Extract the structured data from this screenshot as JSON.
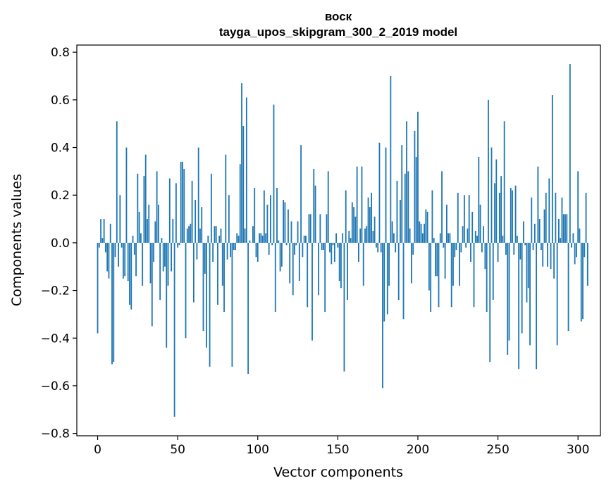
{
  "chart_data": {
    "type": "bar",
    "title_line1": "воск",
    "title_line2": "tayga_upos_skipgram_300_2_2019 model",
    "xlabel": "Vector components",
    "ylabel": "Components values",
    "xlim": [
      -13,
      314
    ],
    "ylim": [
      -0.81,
      0.83
    ],
    "xticks": [
      0,
      50,
      100,
      150,
      200,
      250,
      300
    ],
    "xtick_labels": [
      "0",
      "50",
      "100",
      "150",
      "200",
      "250",
      "300"
    ],
    "yticks": [
      -0.8,
      -0.6,
      -0.4,
      -0.2,
      0.0,
      0.2,
      0.4,
      0.6,
      0.8
    ],
    "ytick_labels": [
      "−0.8",
      "−0.6",
      "−0.4",
      "−0.2",
      "0.0",
      "0.2",
      "0.4",
      "0.6",
      "0.8"
    ],
    "bar_color": "#1f77b4",
    "values": [
      -0.38,
      -0.02,
      0.1,
      0.02,
      0.1,
      -0.04,
      -0.12,
      -0.15,
      0.08,
      -0.51,
      -0.5,
      -0.06,
      0.51,
      -0.1,
      0.2,
      -0.02,
      -0.15,
      -0.14,
      0.4,
      -0.16,
      -0.26,
      -0.28,
      0.03,
      -0.05,
      -0.14,
      0.29,
      0.13,
      0.04,
      -0.18,
      0.28,
      0.37,
      0.1,
      0.16,
      -0.17,
      -0.35,
      -0.08,
      0.09,
      0.3,
      0.16,
      -0.24,
      0.02,
      -0.12,
      -0.1,
      -0.44,
      -0.18,
      0.27,
      -0.12,
      0.1,
      -0.73,
      0.25,
      -0.02,
      -0.01,
      0.34,
      0.34,
      0.31,
      -0.4,
      0.06,
      0.07,
      0.08,
      0.26,
      -0.25,
      0.18,
      -0.07,
      0.4,
      0.06,
      0.15,
      -0.37,
      -0.13,
      -0.44,
      0.03,
      -0.52,
      0.29,
      -0.08,
      0.07,
      0.07,
      -0.26,
      0.03,
      0.06,
      -0.18,
      -0.29,
      0.37,
      -0.07,
      0.2,
      -0.06,
      -0.52,
      -0.03,
      -0.03,
      0.04,
      0.03,
      0.33,
      0.67,
      0.49,
      0.06,
      0.61,
      -0.55,
      0.01,
      0.0,
      0.07,
      0.23,
      -0.06,
      -0.08,
      0.04,
      0.04,
      0.03,
      0.22,
      0.04,
      0.16,
      -0.05,
      0.2,
      -0.01,
      0.58,
      -0.29,
      0.23,
      0.01,
      -0.12,
      -0.1,
      0.18,
      0.17,
      -0.01,
      0.14,
      -0.17,
      0.09,
      -0.22,
      -0.05,
      -0.01,
      0.09,
      -0.16,
      0.41,
      -0.06,
      0.03,
      0.03,
      -0.27,
      0.12,
      0.12,
      -0.41,
      0.31,
      0.24,
      0.0,
      -0.22,
      0.12,
      -0.03,
      -0.03,
      -0.29,
      0.12,
      0.3,
      -0.04,
      -0.09,
      -0.01,
      -0.08,
      0.04,
      -0.02,
      -0.16,
      -0.19,
      0.04,
      -0.54,
      0.22,
      -0.24,
      0.05,
      0.02,
      0.17,
      0.15,
      0.11,
      0.32,
      -0.08,
      0.06,
      0.32,
      -0.18,
      0.06,
      0.07,
      0.19,
      0.15,
      0.21,
      0.05,
      0.11,
      -0.02,
      -0.04,
      0.42,
      -0.04,
      -0.61,
      -0.33,
      0.4,
      -0.3,
      -0.18,
      0.7,
      0.09,
      0.04,
      -0.04,
      0.26,
      -0.24,
      0.18,
      0.41,
      -0.32,
      0.29,
      0.51,
      0.3,
      0.06,
      -0.17,
      -0.05,
      0.47,
      0.36,
      0.55,
      0.09,
      0.08,
      0.04,
      0.08,
      0.14,
      0.13,
      -0.2,
      -0.29,
      0.22,
      0.02,
      -0.14,
      -0.14,
      -0.27,
      0.04,
      0.3,
      -0.02,
      -0.15,
      0.16,
      0.04,
      0.04,
      -0.27,
      -0.18,
      -0.06,
      -0.03,
      0.21,
      -0.18,
      -0.04,
      0.07,
      0.2,
      -0.02,
      0.06,
      0.2,
      -0.08,
      0.13,
      -0.27,
      0.05,
      0.03,
      0.36,
      0.16,
      -0.04,
      0.07,
      -0.11,
      -0.29,
      0.6,
      -0.5,
      0.4,
      -0.24,
      0.25,
      0.35,
      -0.08,
      0.21,
      0.28,
      0.03,
      0.51,
      -0.05,
      -0.47,
      -0.41,
      0.23,
      0.22,
      -0.05,
      0.24,
      0.03,
      -0.53,
      -0.07,
      -0.38,
      0.09,
      -0.01,
      -0.25,
      -0.19,
      -0.43,
      0.19,
      -0.03,
      0.08,
      -0.53,
      0.32,
      0.1,
      -0.03,
      -0.1,
      0.14,
      0.21,
      -0.1,
      0.27,
      -0.11,
      0.62,
      -0.15,
      0.21,
      -0.43,
      0.1,
      0.02,
      0.19,
      0.12,
      0.12,
      0.12,
      -0.37,
      0.75,
      -0.02,
      0.04,
      -0.09,
      -0.06,
      0.3,
      0.06,
      -0.33,
      -0.32,
      -0.06,
      0.21,
      -0.18
    ]
  }
}
